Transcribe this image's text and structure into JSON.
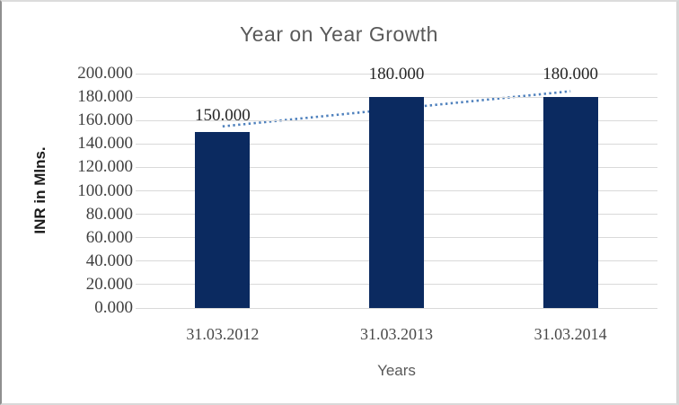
{
  "window": {
    "background": "#ffffff",
    "frame_border_color": "#d9d9d9"
  },
  "chart_data": {
    "type": "bar",
    "title": "Year on Year Growth",
    "xlabel": "Years",
    "ylabel": "INR in Mlns.",
    "categories": [
      "31.03.2012",
      "31.03.2013",
      "31.03.2014"
    ],
    "values": [
      150,
      180,
      180
    ],
    "data_labels": [
      "150.000",
      "180.000",
      "180.000"
    ],
    "ylim": [
      0,
      200
    ],
    "ytick_step": 20,
    "ytick_labels": [
      "0.000",
      "20.000",
      "40.000",
      "60.000",
      "80.000",
      "100.000",
      "120.000",
      "140.000",
      "160.000",
      "180.000",
      "200.000"
    ],
    "grid": "horizontal",
    "legend": "none",
    "colors": {
      "bar": "#0b2a60",
      "gridline": "#d9d9d9",
      "title": "#595959",
      "tick_label": "#404040",
      "category_label": "#4a4a4a",
      "axis_title": "#1a1a1a",
      "xlabel": "#595959",
      "trendline": "#4f81bd"
    },
    "trendline": {
      "type": "linear",
      "style": "dotted",
      "color": "#4f81bd",
      "fitted_values": [
        155,
        170,
        185
      ]
    }
  }
}
